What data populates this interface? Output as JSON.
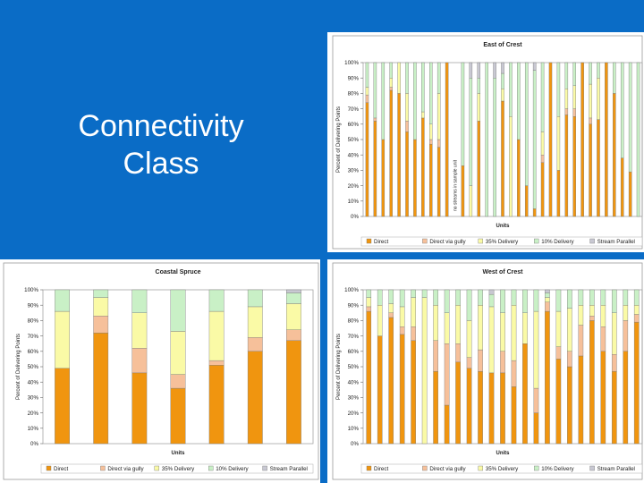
{
  "slide": {
    "title_line1": "Connectivity",
    "title_line2": "Class",
    "background": "#0a6cc6"
  },
  "colors": {
    "Direct": "#f0950f",
    "Direct via gully": "#f6c09a",
    "35% Delivery": "#fafaa6",
    "10% Delivery": "#c9f0c6",
    "Stream Parallel": "#c8c8d2"
  },
  "chart_data": [
    {
      "id": "east",
      "type": "bar",
      "stacked": true,
      "title": "East of Crest",
      "xlabel": "Units",
      "ylabel": "Percent of Delivering Points",
      "ylim": [
        0,
        100
      ],
      "yticks": [
        "0%",
        "10%",
        "20%",
        "30%",
        "40%",
        "50%",
        "60%",
        "70%",
        "80%",
        "90%",
        "100%"
      ],
      "legend": [
        "Direct",
        "Direct via gully",
        "35% Delivery",
        "10% Delivery",
        "Stream Parallel"
      ],
      "annotation": "no streams in sample unit",
      "bars": [
        [
          74,
          5,
          5,
          16,
          0
        ],
        [
          62,
          2,
          0,
          36,
          0
        ],
        [
          50,
          0,
          0,
          50,
          0
        ],
        [
          82,
          2,
          6,
          10,
          0
        ],
        [
          80,
          0,
          20,
          0,
          0
        ],
        [
          55,
          7,
          18,
          20,
          0
        ],
        [
          50,
          0,
          0,
          50,
          0
        ],
        [
          64,
          0,
          4,
          32,
          0
        ],
        [
          47,
          3,
          10,
          40,
          0
        ],
        [
          45,
          5,
          30,
          20,
          0
        ],
        [
          100,
          0,
          0,
          0,
          0
        ],
        null,
        [
          33,
          0,
          0,
          67,
          0
        ],
        [
          0,
          0,
          20,
          70,
          10
        ],
        [
          62,
          0,
          18,
          10,
          10
        ],
        [
          0,
          0,
          0,
          100,
          0
        ],
        [
          0,
          0,
          0,
          90,
          10
        ],
        [
          75,
          0,
          8,
          10,
          7
        ],
        [
          0,
          0,
          65,
          35,
          0
        ],
        [
          50,
          0,
          0,
          50,
          0
        ],
        [
          20,
          0,
          0,
          80,
          0
        ],
        [
          5,
          0,
          0,
          90,
          5
        ],
        [
          35,
          5,
          15,
          45,
          0
        ],
        [
          100,
          0,
          0,
          0,
          0
        ],
        [
          30,
          0,
          35,
          35,
          0
        ],
        [
          66,
          4,
          13,
          17,
          0
        ],
        [
          65,
          5,
          15,
          15,
          0
        ],
        [
          100,
          0,
          0,
          0,
          0
        ],
        [
          60,
          4,
          22,
          14,
          0
        ],
        [
          63,
          0,
          27,
          10,
          0
        ],
        [
          100,
          0,
          0,
          0,
          0
        ],
        [
          80,
          0,
          0,
          20,
          0
        ],
        [
          38,
          0,
          0,
          62,
          0
        ],
        [
          29,
          0,
          0,
          71,
          0
        ],
        [
          0,
          0,
          0,
          100,
          0
        ]
      ]
    },
    {
      "id": "coastal",
      "type": "bar",
      "stacked": true,
      "title": "Coastal Spruce",
      "xlabel": "Units",
      "ylabel": "Percent of Delivering Points",
      "ylim": [
        0,
        100
      ],
      "yticks": [
        "0%",
        "10%",
        "20%",
        "30%",
        "40%",
        "50%",
        "60%",
        "70%",
        "80%",
        "90%",
        "100%"
      ],
      "legend": [
        "Direct",
        "Direct via gully",
        "35% Delivery",
        "10% Delivery",
        "Stream Parallel"
      ],
      "bars": [
        [
          49,
          0,
          37,
          14,
          0
        ],
        [
          72,
          11,
          12,
          5,
          0
        ],
        [
          46,
          16,
          23,
          15,
          0
        ],
        [
          36,
          9,
          28,
          27,
          0
        ],
        [
          51,
          3,
          32,
          14,
          0
        ],
        [
          60,
          9,
          20,
          11,
          0
        ],
        [
          67,
          7,
          17,
          7,
          2
        ]
      ]
    },
    {
      "id": "west",
      "type": "bar",
      "stacked": true,
      "title": "West of Crest",
      "xlabel": "Units",
      "ylabel": "Percent of Delivering Points",
      "ylim": [
        0,
        100
      ],
      "yticks": [
        "0%",
        "10%",
        "20%",
        "30%",
        "40%",
        "50%",
        "60%",
        "70%",
        "80%",
        "90%",
        "100%"
      ],
      "legend": [
        "Direct",
        "Direct via gully",
        "35% Delivery",
        "10% Delivery",
        "Stream Parallel"
      ],
      "bars": [
        [
          86,
          3,
          6,
          5,
          0
        ],
        [
          70,
          0,
          20,
          10,
          0
        ],
        [
          82,
          3,
          6,
          9,
          0
        ],
        [
          71,
          5,
          13,
          11,
          0
        ],
        [
          67,
          9,
          19,
          5,
          0
        ],
        [
          0,
          0,
          95,
          5,
          0
        ],
        [
          47,
          20,
          23,
          10,
          0
        ],
        [
          25,
          40,
          20,
          15,
          0
        ],
        [
          53,
          12,
          25,
          10,
          0
        ],
        [
          49,
          7,
          24,
          20,
          0
        ],
        [
          47,
          14,
          29,
          10,
          0
        ],
        [
          46,
          0,
          43,
          8,
          3
        ],
        [
          46,
          14,
          25,
          15,
          0
        ],
        [
          37,
          17,
          36,
          10,
          0
        ],
        [
          65,
          0,
          20,
          15,
          0
        ],
        [
          20,
          16,
          50,
          14,
          0
        ],
        [
          86,
          6,
          3,
          3,
          2
        ],
        [
          55,
          8,
          23,
          14,
          0
        ],
        [
          50,
          10,
          28,
          12,
          0
        ],
        [
          57,
          20,
          13,
          10,
          0
        ],
        [
          80,
          3,
          7,
          10,
          0
        ],
        [
          60,
          16,
          14,
          10,
          0
        ],
        [
          47,
          11,
          27,
          15,
          0
        ],
        [
          60,
          20,
          10,
          10,
          0
        ],
        [
          79,
          5,
          6,
          10,
          0
        ]
      ]
    }
  ]
}
